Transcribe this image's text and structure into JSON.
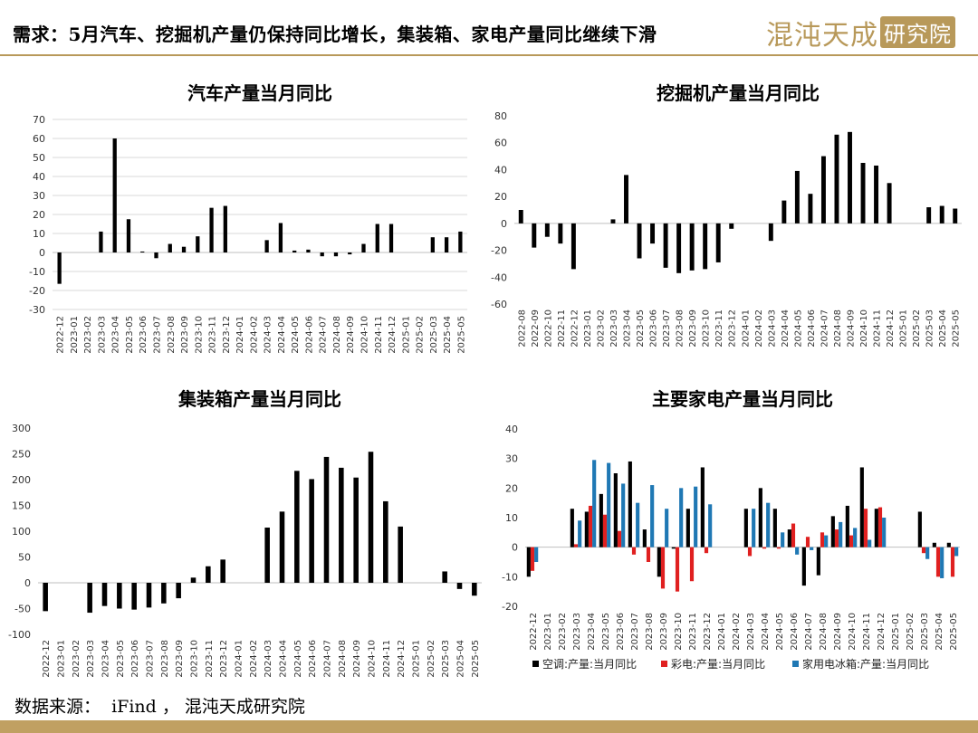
{
  "header": {
    "title": "需求：5月汽车、挖掘机产量仍保持同比增长，集装箱、家电产量同比继续下滑",
    "logo_main": "混沌天成",
    "logo_badge": "研究院"
  },
  "footer": {
    "source": "数据来源：  iFind ， 混沌天成研究院"
  },
  "colors": {
    "accent": "#b8995a",
    "black": "#000000",
    "red": "#e02020",
    "blue": "#1f78b4"
  },
  "chart_data": [
    {
      "id": "auto",
      "type": "bar",
      "title": "汽车产量当月同比",
      "ylim": [
        -30,
        70
      ],
      "yticks": [
        -30,
        -20,
        -10,
        0,
        10,
        20,
        30,
        40,
        50,
        60,
        70
      ],
      "grid": true,
      "categories": [
        "2022-12",
        "2023-01",
        "2023-02",
        "2023-03",
        "2023-04",
        "2023-05",
        "2023-06",
        "2023-07",
        "2023-08",
        "2023-09",
        "2023-10",
        "2023-11",
        "2023-12",
        "2024-01",
        "2024-02",
        "2024-03",
        "2024-04",
        "2024-05",
        "2024-06",
        "2024-07",
        "2024-08",
        "2024-09",
        "2024-10",
        "2024-11",
        "2024-12",
        "2025-01",
        "2025-02",
        "2025-03",
        "2025-04",
        "2025-05"
      ],
      "series": [
        {
          "color": "#000000",
          "values": [
            -16.5,
            null,
            null,
            11,
            60,
            17.5,
            0.5,
            -3,
            4.5,
            3,
            8.5,
            23.5,
            24.5,
            null,
            null,
            6.5,
            15.5,
            1,
            1.5,
            -2,
            -2,
            -1,
            4.5,
            15,
            15,
            null,
            null,
            8,
            8,
            11
          ]
        }
      ]
    },
    {
      "id": "excavator",
      "type": "bar",
      "title": "挖掘机产量当月同比",
      "ylim": [
        -60,
        80
      ],
      "yticks": [
        -60,
        -40,
        -20,
        0,
        20,
        40,
        60,
        80
      ],
      "grid": false,
      "categories": [
        "2022-08",
        "2022-09",
        "2022-10",
        "2022-11",
        "2022-12",
        "2023-01",
        "2023-02",
        "2023-03",
        "2023-04",
        "2023-05",
        "2023-06",
        "2023-07",
        "2023-08",
        "2023-09",
        "2023-10",
        "2023-11",
        "2023-12",
        "2024-01",
        "2024-02",
        "2024-03",
        "2024-04",
        "2024-05",
        "2024-06",
        "2024-07",
        "2024-08",
        "2024-09",
        "2024-10",
        "2024-11",
        "2024-12",
        "2025-01",
        "2025-02",
        "2025-03",
        "2025-04",
        "2025-05"
      ],
      "series": [
        {
          "color": "#000000",
          "values": [
            10,
            -18,
            -10,
            -15,
            -34,
            null,
            null,
            3,
            36,
            -26,
            -15,
            -33,
            -37,
            -35,
            -34,
            -29,
            -4,
            null,
            null,
            -13,
            17,
            39,
            22,
            50,
            66,
            68,
            45,
            43,
            30,
            null,
            null,
            12,
            13,
            11
          ]
        }
      ]
    },
    {
      "id": "container",
      "type": "bar",
      "title": "集装箱产量当月同比",
      "ylim": [
        -100,
        300
      ],
      "yticks": [
        -100,
        -50,
        0,
        50,
        100,
        150,
        200,
        250,
        300
      ],
      "grid": false,
      "categories": [
        "2022-12",
        "2023-01",
        "2023-02",
        "2023-03",
        "2023-04",
        "2023-05",
        "2023-06",
        "2023-07",
        "2023-08",
        "2023-09",
        "2023-10",
        "2023-11",
        "2023-12",
        "2024-01",
        "2024-02",
        "2024-03",
        "2024-04",
        "2024-05",
        "2024-06",
        "2024-07",
        "2024-08",
        "2024-09",
        "2024-10",
        "2024-11",
        "2024-12",
        "2025-01",
        "2025-02",
        "2025-03",
        "2025-04",
        "2025-05"
      ],
      "series": [
        {
          "color": "#000000",
          "values": [
            -55,
            null,
            null,
            -58,
            -45,
            -50,
            -52,
            -48,
            -40,
            -30,
            10,
            32,
            45,
            null,
            null,
            107,
            138,
            217,
            201,
            244,
            223,
            204,
            254,
            158,
            109,
            null,
            null,
            22,
            -12,
            -25
          ]
        }
      ]
    },
    {
      "id": "appliance",
      "type": "bar",
      "title": "主要家电产量当月同比",
      "ylim": [
        -20,
        40
      ],
      "yticks": [
        -20,
        -10,
        0,
        10,
        20,
        30,
        40
      ],
      "grid": false,
      "categories": [
        "2022-12",
        "2023-01",
        "2023-02",
        "2023-03",
        "2023-04",
        "2023-05",
        "2023-06",
        "2023-07",
        "2023-08",
        "2023-09",
        "2023-10",
        "2023-11",
        "2023-12",
        "2024-01",
        "2024-02",
        "2024-03",
        "2024-04",
        "2024-05",
        "2024-06",
        "2024-07",
        "2024-08",
        "2024-09",
        "2024-10",
        "2024-11",
        "2024-12",
        "2025-01",
        "2025-02",
        "2025-03",
        "2025-04",
        "2025-05"
      ],
      "series": [
        {
          "name": "空调:产量:当月同比",
          "color": "#000000",
          "values": [
            -10,
            null,
            null,
            13,
            12,
            18,
            25,
            29,
            6,
            -10,
            -0.5,
            13,
            27,
            null,
            null,
            13,
            20,
            13,
            6,
            -13,
            -9.5,
            10.5,
            14,
            27,
            13,
            null,
            null,
            12,
            1.5,
            1.5
          ]
        },
        {
          "name": "彩电:产量:当月同比",
          "color": "#e02020",
          "values": [
            -8,
            null,
            null,
            1,
            14,
            11,
            5.5,
            -2.5,
            -5,
            -14,
            -15,
            -11.5,
            -2,
            null,
            null,
            -3,
            -0.5,
            -0.5,
            8,
            3.5,
            5,
            6,
            4,
            13,
            13.5,
            null,
            null,
            -2,
            -10,
            -10
          ]
        },
        {
          "name": "家用电冰箱:产量:当月同比",
          "color": "#1f78b4",
          "values": [
            -5,
            null,
            null,
            9,
            29.5,
            28.5,
            21.5,
            15,
            21,
            13,
            20,
            20.5,
            14.5,
            null,
            null,
            13,
            15,
            5,
            -2.5,
            -1,
            4,
            8.5,
            6.5,
            2.5,
            10,
            null,
            null,
            -4,
            -10.5,
            -3
          ]
        }
      ]
    }
  ]
}
